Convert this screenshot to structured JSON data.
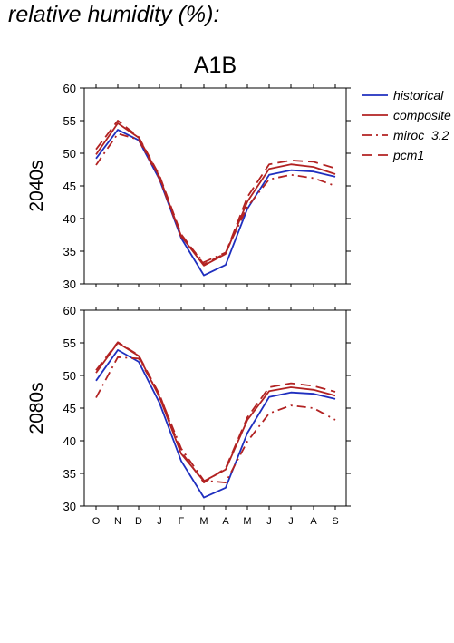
{
  "page_title": "relative humidity (%):",
  "chart_data": {
    "type": "line",
    "title": "A1B",
    "xlabel": "",
    "ylabel": "",
    "categories": [
      "O",
      "N",
      "D",
      "J",
      "F",
      "M",
      "A",
      "M",
      "J",
      "J",
      "A",
      "S"
    ],
    "ylim": [
      30,
      60
    ],
    "yticks": [
      30,
      35,
      40,
      45,
      50,
      55,
      60
    ],
    "grid": false,
    "legend": {
      "placement": "right",
      "entries": [
        {
          "name": "historical",
          "color": "#1f2fbf",
          "dash": "solid"
        },
        {
          "name": "composite",
          "color": "#b22222",
          "dash": "solid"
        },
        {
          "name": "miroc_3.2",
          "color": "#b22222",
          "dash": "dashdot"
        },
        {
          "name": "pcm1",
          "color": "#b22222",
          "dash": "dashed"
        }
      ]
    },
    "panels": [
      {
        "row_label": "2040s",
        "series": [
          {
            "name": "historical",
            "values": [
              49.2,
              53.6,
              52.0,
              46.0,
              37.0,
              31.3,
              32.9,
              41.5,
              46.7,
              47.4,
              47.2,
              46.4
            ]
          },
          {
            "name": "composite",
            "values": [
              49.8,
              54.6,
              52.4,
              46.4,
              37.3,
              32.8,
              34.6,
              42.6,
              47.6,
              48.3,
              47.9,
              46.8
            ]
          },
          {
            "name": "miroc_3.2",
            "values": [
              48.2,
              53.0,
              52.1,
              46.1,
              37.2,
              33.3,
              34.8,
              41.8,
              46.0,
              46.7,
              46.2,
              45.0
            ]
          },
          {
            "name": "pcm1",
            "values": [
              50.6,
              55.0,
              52.5,
              46.6,
              37.6,
              33.0,
              34.7,
              43.3,
              48.3,
              48.9,
              48.7,
              47.7
            ]
          }
        ]
      },
      {
        "row_label": "2080s",
        "series": [
          {
            "name": "historical",
            "values": [
              49.2,
              53.9,
              52.1,
              45.8,
              36.9,
              31.3,
              32.8,
              41.2,
              46.7,
              47.4,
              47.2,
              46.4
            ]
          },
          {
            "name": "composite",
            "values": [
              50.4,
              55.0,
              53.0,
              46.7,
              38.0,
              33.8,
              35.6,
              43.2,
              47.6,
              48.2,
              47.8,
              46.9
            ]
          },
          {
            "name": "miroc_3.2",
            "values": [
              46.6,
              52.8,
              52.6,
              47.0,
              38.8,
              33.9,
              33.6,
              39.9,
              44.2,
              45.4,
              45.0,
              43.2
            ]
          },
          {
            "name": "pcm1",
            "values": [
              50.8,
              55.1,
              53.1,
              47.1,
              38.3,
              33.6,
              35.8,
              43.6,
              48.2,
              48.8,
              48.4,
              47.5
            ]
          }
        ]
      }
    ]
  }
}
